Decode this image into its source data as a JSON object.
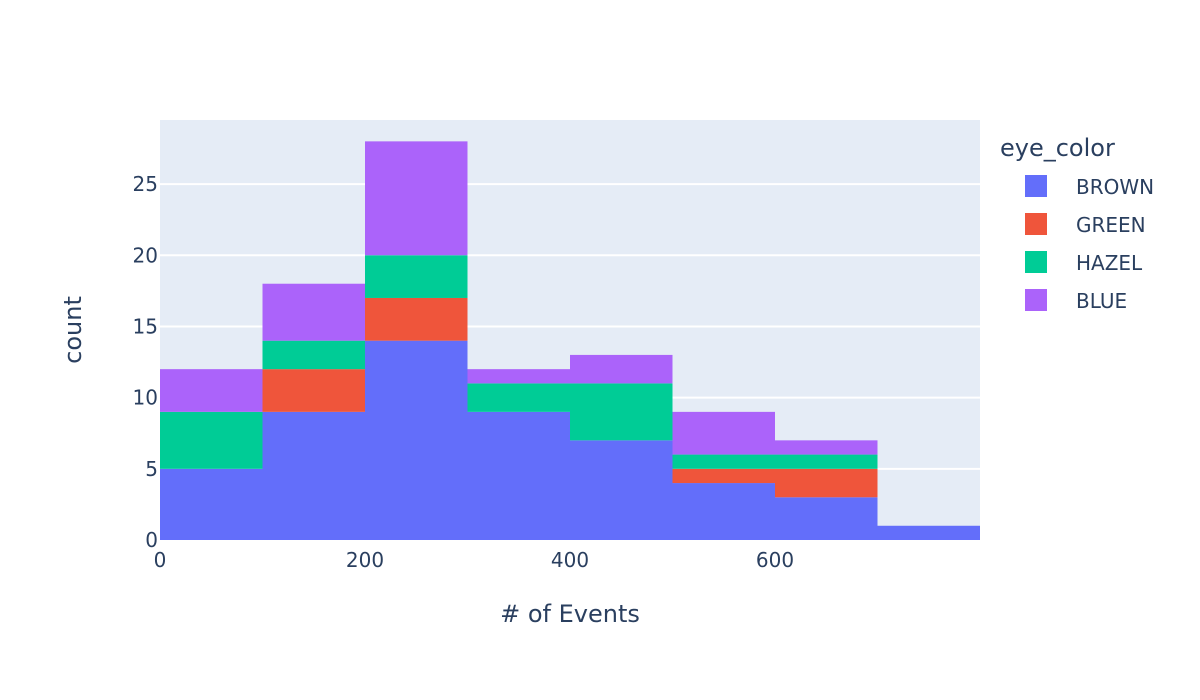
{
  "chart_data": {
    "type": "bar",
    "barmode": "stack",
    "bins": [
      [
        0,
        100
      ],
      [
        100,
        200
      ],
      [
        200,
        300
      ],
      [
        300,
        400
      ],
      [
        400,
        500
      ],
      [
        500,
        600
      ],
      [
        600,
        700
      ],
      [
        700,
        800
      ]
    ],
    "series": [
      {
        "name": "BROWN",
        "color": "#636efa",
        "values": [
          5,
          9,
          14,
          9,
          7,
          4,
          3,
          1
        ]
      },
      {
        "name": "GREEN",
        "color": "#ef553b",
        "values": [
          0,
          3,
          3,
          0,
          0,
          1,
          2,
          0
        ]
      },
      {
        "name": "HAZEL",
        "color": "#00cc96",
        "values": [
          4,
          2,
          3,
          2,
          4,
          1,
          1,
          0
        ]
      },
      {
        "name": "BLUE",
        "color": "#ab63fa",
        "values": [
          3,
          4,
          8,
          1,
          2,
          3,
          1,
          0
        ]
      }
    ],
    "xlabel": "# of Events",
    "ylabel": "count",
    "xlim": [
      0,
      800
    ],
    "ylim": [
      0,
      29.5
    ],
    "xticks": [
      0,
      200,
      400,
      600
    ],
    "yticks": [
      0,
      5,
      10,
      15,
      20,
      25
    ],
    "legend_title": "eye_color",
    "legend_position": "right",
    "grid": true,
    "plot_bgcolor": "#e5ecf6"
  }
}
